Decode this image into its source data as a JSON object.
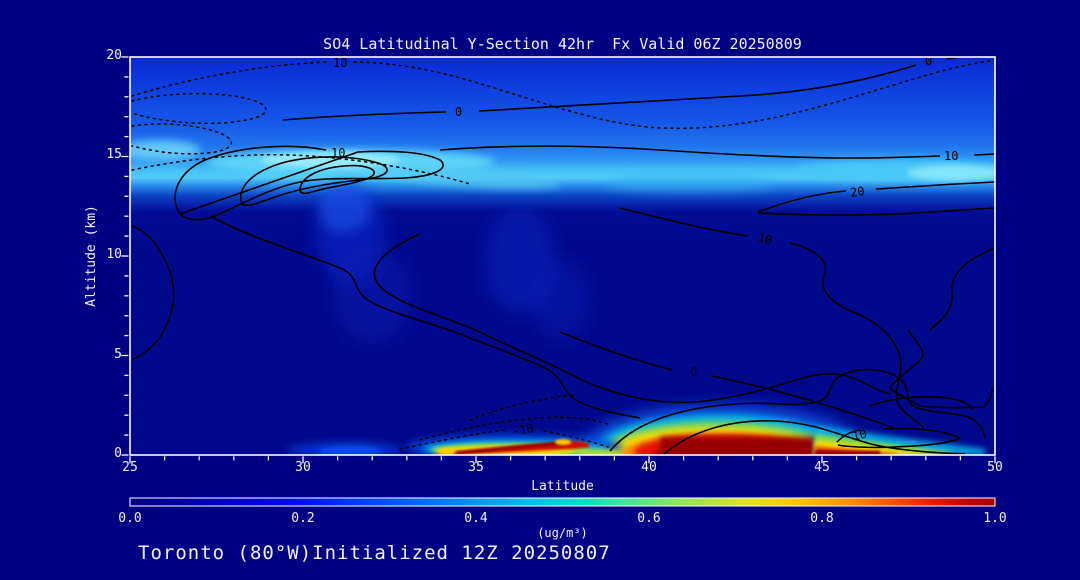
{
  "title": "SO4 Latitudinal Y-Section 42hr  Fx Valid 06Z 20250809",
  "footer": "Toronto (80°W)Initialized 12Z 20250807",
  "axes": {
    "y": {
      "label": "Altitude (km)",
      "ticks": [
        "20",
        "15",
        "10",
        "5",
        "0"
      ]
    },
    "x": {
      "label": "Latitude",
      "ticks": [
        "25",
        "30",
        "35",
        "40",
        "45",
        "50"
      ]
    }
  },
  "colorbar": {
    "label": "(ug/m³)",
    "ticks": [
      "0.0",
      "0.2",
      "0.4",
      "0.6",
      "0.8",
      "1.0"
    ],
    "min": 0.0,
    "max": 1.0
  },
  "contours": {
    "labels": [
      {
        "text": "10"
      },
      {
        "text": "0"
      },
      {
        "text": "10"
      },
      {
        "text": "0"
      },
      {
        "text": "10"
      },
      {
        "text": "20"
      },
      {
        "text": "10"
      },
      {
        "text": "0"
      },
      {
        "text": "-10"
      },
      {
        "text": "10"
      }
    ]
  },
  "colors": {
    "background": "#000084",
    "plot_base": "#02088c",
    "frame": "#ffffff",
    "text": "#f2f2f6",
    "contour_line": "#000000",
    "hot_core": "#970000",
    "cyan_band": "#52ccf8"
  },
  "chart_data": {
    "type": "heatmap",
    "title": "SO4 Latitudinal Y-Section 42hr  Fx Valid 06Z 20250809",
    "subtitle": "Toronto (80°W)Initialized 12Z 20250807",
    "xlabel": "Latitude",
    "ylabel": "Altitude (km)",
    "units": "ug/m³",
    "xlim": [
      25,
      50
    ],
    "ylim": [
      0,
      20
    ],
    "colorbar_range": [
      0.0,
      1.0
    ],
    "x": [
      25,
      27.5,
      30,
      32.5,
      35,
      37.5,
      40,
      42.5,
      45,
      47.5,
      50
    ],
    "y": [
      0,
      1,
      2,
      4,
      6,
      8,
      10,
      12,
      14,
      15,
      16,
      18,
      20
    ],
    "values": [
      [
        0.05,
        0.05,
        0.1,
        0.3,
        0.95,
        0.6,
        0.8,
        1.0,
        0.95,
        0.8,
        0.4
      ],
      [
        0.05,
        0.05,
        0.08,
        0.1,
        0.3,
        0.25,
        0.6,
        0.95,
        0.7,
        0.35,
        0.15
      ],
      [
        0.05,
        0.05,
        0.05,
        0.05,
        0.08,
        0.1,
        0.3,
        0.55,
        0.25,
        0.08,
        0.05
      ],
      [
        0.05,
        0.05,
        0.05,
        0.06,
        0.06,
        0.06,
        0.05,
        0.05,
        0.05,
        0.05,
        0.05
      ],
      [
        0.05,
        0.05,
        0.06,
        0.08,
        0.08,
        0.08,
        0.06,
        0.05,
        0.05,
        0.05,
        0.05
      ],
      [
        0.06,
        0.06,
        0.08,
        0.1,
        0.12,
        0.1,
        0.08,
        0.06,
        0.06,
        0.05,
        0.05
      ],
      [
        0.08,
        0.08,
        0.1,
        0.12,
        0.15,
        0.12,
        0.08,
        0.08,
        0.08,
        0.06,
        0.06
      ],
      [
        0.1,
        0.12,
        0.12,
        0.15,
        0.18,
        0.15,
        0.1,
        0.12,
        0.15,
        0.1,
        0.08
      ],
      [
        0.3,
        0.25,
        0.3,
        0.38,
        0.3,
        0.2,
        0.15,
        0.3,
        0.25,
        0.3,
        0.28
      ],
      [
        0.42,
        0.45,
        0.5,
        0.52,
        0.48,
        0.42,
        0.4,
        0.44,
        0.42,
        0.46,
        0.5
      ],
      [
        0.38,
        0.4,
        0.42,
        0.4,
        0.38,
        0.36,
        0.35,
        0.36,
        0.37,
        0.38,
        0.4
      ],
      [
        0.32,
        0.33,
        0.32,
        0.31,
        0.3,
        0.29,
        0.28,
        0.28,
        0.29,
        0.3,
        0.3
      ],
      [
        0.28,
        0.28,
        0.27,
        0.27,
        0.27,
        0.26,
        0.25,
        0.25,
        0.25,
        0.26,
        0.26
      ]
    ],
    "overlay_contour_levels_labeled": [
      -10,
      0,
      10,
      20
    ],
    "overlay_contour_style": {
      "negative": "dotted",
      "nonnegative": "solid"
    },
    "legend_position": "bottom-colorbar",
    "grid": false
  }
}
